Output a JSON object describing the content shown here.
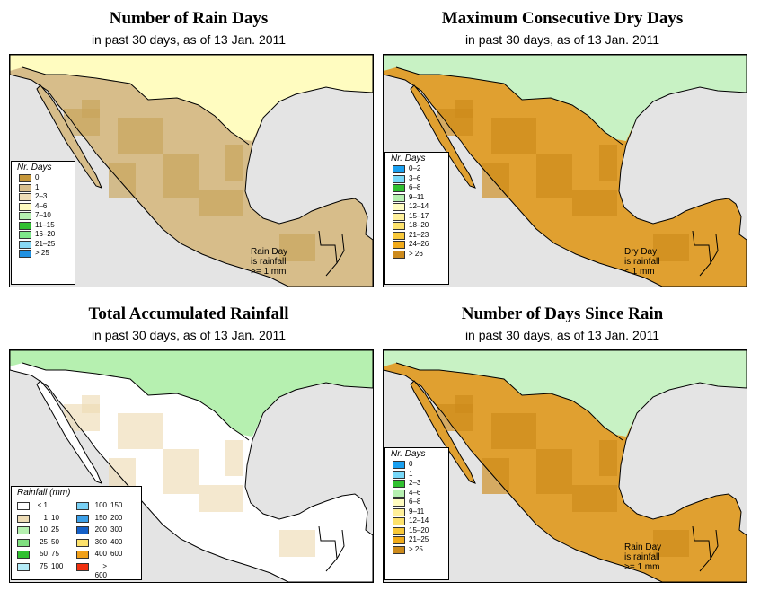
{
  "panels": {
    "rain_days": {
      "title": "Number of Rain Days",
      "subtitle": "in past 30 days, as of  13 Jan. 2011",
      "legend_title": "Nr. Days",
      "legend": [
        {
          "label": "0",
          "color": "#c6973a"
        },
        {
          "label": "1",
          "color": "#d8be8c"
        },
        {
          "label": "2–3",
          "color": "#eedcb6"
        },
        {
          "label": "4–6",
          "color": "#fffcc0"
        },
        {
          "label": "7–10",
          "color": "#b6f0b0"
        },
        {
          "label": "11–15",
          "color": "#30c030"
        },
        {
          "label": "16–20",
          "color": "#7ee88a"
        },
        {
          "label": "21–25",
          "color": "#88d8f4"
        },
        {
          "label": "> 25",
          "color": "#2090e0"
        }
      ],
      "note": [
        "Rain Day",
        "is rainfall",
        ">= 1 mm"
      ],
      "colors": {
        "land": "#d7bd8a",
        "land2": "#c8a45a",
        "sea": "#e4e4e4",
        "north": "#fffcc0"
      }
    },
    "dry_days": {
      "title": "Maximum Consecutive Dry Days",
      "subtitle": "in past 30 days, as of  13 Jan. 2011",
      "legend_title": "Nr. Days",
      "legend": [
        {
          "label": "0–2",
          "color": "#1aa0f0"
        },
        {
          "label": "3–6",
          "color": "#78d8f8"
        },
        {
          "label": "6–8",
          "color": "#30c030"
        },
        {
          "label": "9–11",
          "color": "#b6f0b0"
        },
        {
          "label": "12–14",
          "color": "#fffcc0"
        },
        {
          "label": "15–17",
          "color": "#fff09a"
        },
        {
          "label": "18–20",
          "color": "#fde26c"
        },
        {
          "label": "21–23",
          "color": "#f8c83a"
        },
        {
          "label": "24–26",
          "color": "#f0aa1a"
        },
        {
          "label": "> 26",
          "color": "#cc8a1c"
        }
      ],
      "note": [
        "Dry Day",
        "is rainfall",
        "< 1 mm"
      ],
      "colors": {
        "land": "#e0a030",
        "land2": "#cc8a1c",
        "sea": "#e4e4e4",
        "north": "#c8f2c4"
      }
    },
    "total_rainfall": {
      "title": "Total Accumulated Rainfall",
      "subtitle": "in past 30 days, as of  13 Jan. 2011",
      "legend_title": "Rainfall (mm)",
      "legend": [
        {
          "a": "< 1",
          "b": "",
          "color": "#ffffff"
        },
        {
          "a": "1",
          "b": "10",
          "color": "#eedcb6"
        },
        {
          "a": "10",
          "b": "25",
          "color": "#b6f0b0"
        },
        {
          "a": "25",
          "b": "50",
          "color": "#80e080"
        },
        {
          "a": "50",
          "b": "75",
          "color": "#30c030"
        },
        {
          "a": "75",
          "b": "100",
          "color": "#b4ecf8"
        },
        {
          "a": "100",
          "b": "150",
          "color": "#78d0f4"
        },
        {
          "a": "150",
          "b": "200",
          "color": "#3ca0e8"
        },
        {
          "a": "200",
          "b": "300",
          "color": "#1460c8"
        },
        {
          "a": "300",
          "b": "400",
          "color": "#fde26c"
        },
        {
          "a": "400",
          "b": "600",
          "color": "#f0a01a"
        },
        {
          "a": "> 600",
          "b": "",
          "color": "#f03010"
        }
      ],
      "colors": {
        "land": "#ffffff",
        "land2": "#eedcb6",
        "sea": "#e4e4e4",
        "north": "#b6f0b0"
      }
    },
    "days_since_rain": {
      "title": "Number of Days Since Rain",
      "subtitle": "in past 30 days, as of  13 Jan. 2011",
      "legend_title": "Nr. Days",
      "legend": [
        {
          "label": "0",
          "color": "#1aa0f0"
        },
        {
          "label": "1",
          "color": "#78d8f8"
        },
        {
          "label": "2–3",
          "color": "#30c030"
        },
        {
          "label": "4–6",
          "color": "#b6f0b0"
        },
        {
          "label": "6–8",
          "color": "#fffcc0"
        },
        {
          "label": "9–11",
          "color": "#fff09a"
        },
        {
          "label": "12–14",
          "color": "#fde26c"
        },
        {
          "label": "15–20",
          "color": "#f8c83a"
        },
        {
          "label": "21–25",
          "color": "#f0aa1a"
        },
        {
          "label": "> 25",
          "color": "#cc8a1c"
        }
      ],
      "note": [
        "Rain Day",
        "is rainfall",
        ">= 1 mm"
      ],
      "colors": {
        "land": "#e0a030",
        "land2": "#cc8a1c",
        "sea": "#e4e4e4",
        "north": "#c8f2c4"
      }
    }
  }
}
